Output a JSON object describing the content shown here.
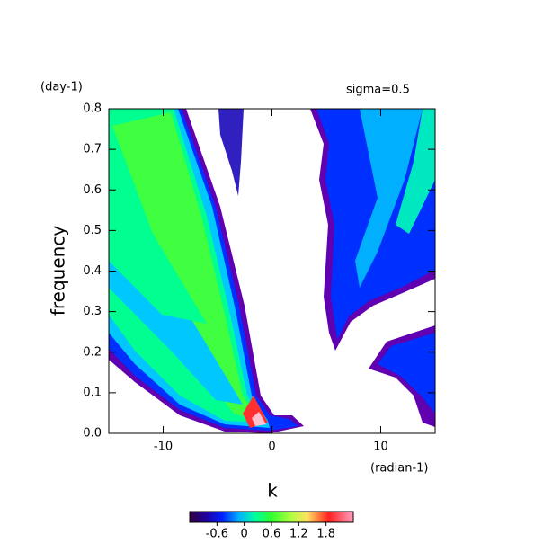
{
  "chart_data": {
    "type": "contour",
    "top_left_label": "(day-1)",
    "top_right_label": "sigma=0.5",
    "x_label": "k",
    "x_unit_label": "(radian-1)",
    "y_label": "frequency",
    "xlim": [
      -15,
      15
    ],
    "xticks": [
      -10,
      0,
      10
    ],
    "ylim": [
      0,
      0.8
    ],
    "yticks": [
      {
        "value": 0,
        "label": "0.0"
      },
      0.1,
      0.2,
      0.3,
      0.4,
      0.5,
      0.6,
      0.7,
      0.8
    ],
    "colorbar": {
      "zlim": [
        -1.2,
        2.4
      ],
      "zticks": [
        -0.6,
        0,
        0.6,
        1.2,
        1.8
      ]
    }
  }
}
